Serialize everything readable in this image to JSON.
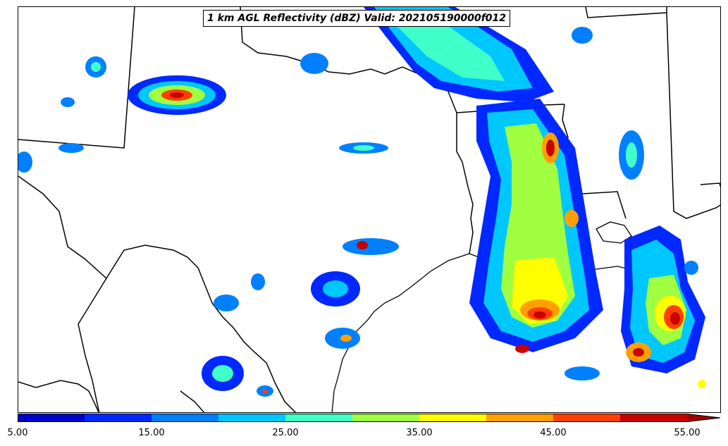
{
  "title": "1 km AGL Reflectivity (dBZ) Valid: 202105190000f012",
  "colorbar": {
    "min": 5.0,
    "max": 57.5,
    "step": 5,
    "extend": "max",
    "tick_labels": [
      "5.00",
      "15.00",
      "25.00",
      "35.00",
      "45.00",
      "55.00"
    ],
    "tick_values": [
      5,
      15,
      25,
      35,
      45,
      55
    ],
    "colors": [
      "#0000c8",
      "#0028ff",
      "#0080ff",
      "#00c8ff",
      "#40ffc8",
      "#a0ff40",
      "#ffff00",
      "#ffa000",
      "#ff4000",
      "#c80000",
      "#a00000"
    ]
  },
  "legend_colors": {
    "5-10": "#0000c8",
    "10-15": "#0028ff",
    "15-20": "#0080ff",
    "20-25": "#00c8ff",
    "25-30": "#40ffc8",
    "30-35": "#a0ff40",
    "35-40": "#ffff00",
    "40-45": "#ffa000",
    "45-50": "#ff4000",
    "50-55": "#c80000",
    "55+": "#a00000"
  }
}
